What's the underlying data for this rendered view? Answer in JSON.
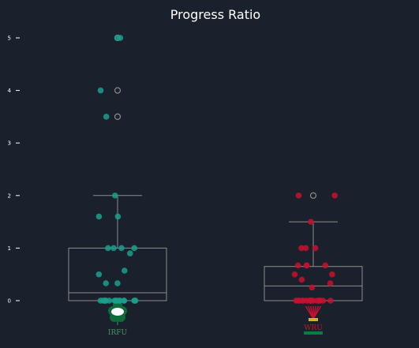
{
  "chart_data": {
    "type": "box",
    "title": "Progress Ratio",
    "xlabel": "",
    "ylabel": "",
    "ylim": [
      -0.3,
      5.25
    ],
    "yticks": [
      0,
      1,
      2,
      3,
      4,
      5
    ],
    "grid": false,
    "legend": "none",
    "groups": [
      {
        "logo": "irfu-shamrock-logo",
        "logo_text": "IRFU",
        "color": "#1a9f8c",
        "box": {
          "q1": 0,
          "median": 0.15,
          "q3": 1.0,
          "whisker_low": 0,
          "whisker_high": 2.0
        },
        "fliers": [
          3.5,
          4.0,
          5.0
        ],
        "points": [
          5.0,
          5.0,
          4.0,
          3.5,
          2.0,
          1.6,
          1.6,
          1.0,
          1.0,
          1.0,
          1.0,
          0.9,
          0.57,
          0.5,
          0.33,
          0.33,
          0,
          0,
          0,
          0,
          0,
          0,
          0,
          0,
          0,
          0,
          0,
          0,
          0,
          0,
          0,
          0
        ]
      },
      {
        "logo": "wru-feathers-logo",
        "logo_text": "WRU",
        "color": "#c8102e",
        "box": {
          "q1": 0,
          "median": 0.28,
          "q3": 0.65,
          "whisker_low": 0,
          "whisker_high": 1.5
        },
        "fliers": [
          2.0
        ],
        "points": [
          2.0,
          2.0,
          1.5,
          1.0,
          1.0,
          1.0,
          0.67,
          0.67,
          0.67,
          0.67,
          0.5,
          0.5,
          0.4,
          0.33,
          0.25,
          0,
          0,
          0,
          0,
          0,
          0,
          0,
          0,
          0,
          0,
          0,
          0,
          0,
          0,
          0,
          0,
          0,
          0
        ]
      }
    ]
  }
}
